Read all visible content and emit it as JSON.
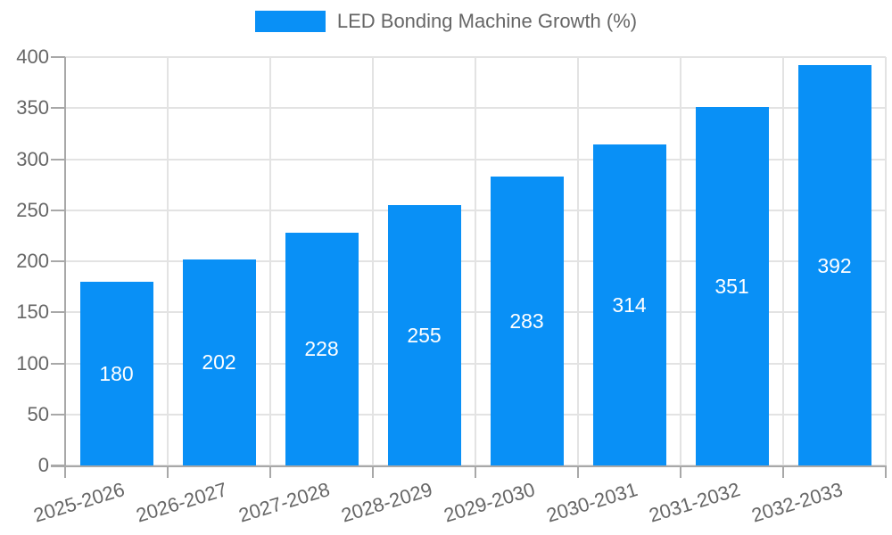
{
  "chart_data": {
    "type": "bar",
    "title": "LED Bonding Machine Growth (%)",
    "categories": [
      "2025-2026",
      "2026-2027",
      "2027-2028",
      "2028-2029",
      "2029-2030",
      "2030-2031",
      "2031-2032",
      "2032-2033"
    ],
    "values": [
      180,
      202,
      228,
      255,
      283,
      314,
      351,
      392
    ],
    "xlabel": "",
    "ylabel": "",
    "ylim": [
      0,
      400
    ],
    "y_ticks": [
      0,
      50,
      100,
      150,
      200,
      250,
      300,
      350,
      400
    ],
    "grid": true,
    "legend_position": "top",
    "value_labels_position": "middle-inside",
    "x_label_rotation_deg": -17,
    "colors": {
      "bar": "#0990f6",
      "grid": "#e3e3e3",
      "axis": "#a8a8a8",
      "tick_text": "#666666",
      "legend_text": "#666666",
      "value_label": "#ffffff",
      "background": "#ffffff"
    }
  }
}
